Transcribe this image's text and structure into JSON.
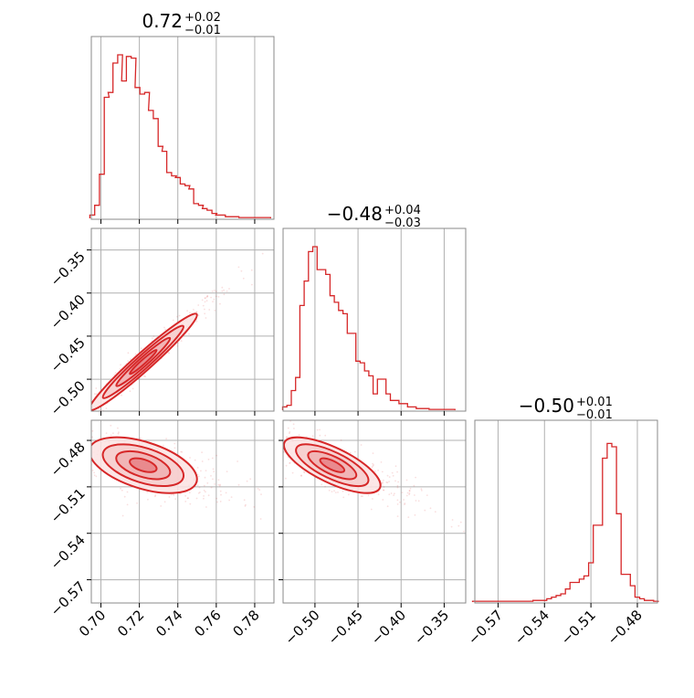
{
  "colors": {
    "accent": "#d62728",
    "fill_light": "#f4c6c7",
    "grid": "#b0b0b0"
  },
  "chart_data": {
    "type": "corner",
    "parameters": [
      {
        "title_main": "0.72",
        "title_plus": "+0.02",
        "title_minus": "−0.01",
        "range": [
          0.695,
          0.79
        ],
        "ticks": [
          0.7,
          0.72,
          0.74,
          0.76,
          0.78
        ],
        "tick_labels": [
          "0.70",
          "0.72",
          "0.74",
          "0.76",
          "0.78"
        ]
      },
      {
        "title_main": "−0.48",
        "title_plus": "+0.04",
        "title_minus": "−0.03",
        "range": [
          -0.537,
          -0.325
        ],
        "ticks": [
          -0.5,
          -0.45,
          -0.4,
          -0.35
        ],
        "tick_labels": [
          "−0.50",
          "−0.45",
          "−0.40",
          "−0.35"
        ]
      },
      {
        "title_main": "−0.50",
        "title_plus": "+0.01",
        "title_minus": "−0.01",
        "range": [
          -0.585,
          -0.467
        ],
        "ticks": [
          -0.57,
          -0.54,
          -0.51,
          -0.48
        ],
        "tick_labels": [
          "−0.57",
          "−0.54",
          "−0.51",
          "−0.48"
        ]
      }
    ],
    "histograms": [
      {
        "param": 0,
        "x": [
          0.6955,
          0.698,
          0.7005,
          0.703,
          0.705,
          0.7075,
          0.71,
          0.712,
          0.7145,
          0.717,
          0.719,
          0.7215,
          0.724,
          0.726,
          0.7285,
          0.731,
          0.733,
          0.7355,
          0.738,
          0.74,
          0.7425,
          0.745,
          0.747,
          0.7495,
          0.752,
          0.754,
          0.7565,
          0.759,
          0.761,
          0.7635,
          0.766,
          0.768,
          0.7705,
          0.773,
          0.775,
          0.7775,
          0.78,
          0.782,
          0.7845,
          0.787
        ],
        "y": [
          0.02,
          0.08,
          0.27,
          0.74,
          0.77,
          0.95,
          1.0,
          0.84,
          0.99,
          0.98,
          0.8,
          0.76,
          0.77,
          0.66,
          0.61,
          0.44,
          0.41,
          0.28,
          0.26,
          0.25,
          0.21,
          0.2,
          0.18,
          0.09,
          0.08,
          0.06,
          0.05,
          0.03,
          0.02,
          0.02,
          0.01,
          0.01,
          0.01,
          0.005,
          0.005,
          0.005,
          0.005,
          0.005,
          0.005,
          0.005
        ]
      },
      {
        "param": 1,
        "x": [
          -0.535,
          -0.53,
          -0.525,
          -0.52,
          -0.515,
          -0.51,
          -0.505,
          -0.5,
          -0.495,
          -0.49,
          -0.485,
          -0.48,
          -0.475,
          -0.47,
          -0.465,
          -0.46,
          -0.455,
          -0.45,
          -0.445,
          -0.44,
          -0.435,
          -0.43,
          -0.425,
          -0.42,
          -0.415,
          -0.41,
          -0.405,
          -0.4,
          -0.395,
          -0.39,
          -0.385,
          -0.38,
          -0.375,
          -0.37,
          -0.365,
          -0.36,
          -0.355,
          -0.35,
          -0.345,
          -0.34
        ],
        "y": [
          0.02,
          0.03,
          0.12,
          0.2,
          0.64,
          0.79,
          0.97,
          1.0,
          0.86,
          0.86,
          0.83,
          0.7,
          0.66,
          0.61,
          0.59,
          0.47,
          0.47,
          0.3,
          0.29,
          0.24,
          0.21,
          0.1,
          0.19,
          0.19,
          0.1,
          0.06,
          0.06,
          0.04,
          0.04,
          0.02,
          0.02,
          0.01,
          0.01,
          0.01,
          0.005,
          0.005,
          0.005,
          0.005,
          0.005,
          0.005
        ]
      },
      {
        "param": 2,
        "x": [
          -0.585,
          -0.582,
          -0.579,
          -0.576,
          -0.573,
          -0.57,
          -0.567,
          -0.564,
          -0.561,
          -0.558,
          -0.555,
          -0.552,
          -0.549,
          -0.546,
          -0.543,
          -0.54,
          -0.537,
          -0.534,
          -0.531,
          -0.528,
          -0.525,
          -0.522,
          -0.519,
          -0.516,
          -0.513,
          -0.51,
          -0.507,
          -0.504,
          -0.501,
          -0.498,
          -0.495,
          -0.492,
          -0.489,
          -0.486,
          -0.483,
          -0.48,
          -0.477,
          -0.474,
          -0.471,
          -0.468
        ],
        "y": [
          0.005,
          0.005,
          0.005,
          0.005,
          0.005,
          0.005,
          0.005,
          0.005,
          0.005,
          0.005,
          0.005,
          0.005,
          0.005,
          0.01,
          0.01,
          0.01,
          0.02,
          0.03,
          0.04,
          0.05,
          0.08,
          0.12,
          0.12,
          0.14,
          0.16,
          0.24,
          0.47,
          0.47,
          0.88,
          0.97,
          0.95,
          0.54,
          0.17,
          0.17,
          0.1,
          0.03,
          0.02,
          0.01,
          0.01,
          0.005
        ]
      }
    ],
    "joint": [
      {
        "row": 1,
        "col": 0,
        "center": [
          0.722,
          -0.48
        ],
        "sd": [
          0.014,
          0.028
        ],
        "rho": 0.97
      },
      {
        "row": 2,
        "col": 0,
        "center": [
          0.722,
          -0.496
        ],
        "sd": [
          0.014,
          0.009
        ],
        "rho": -0.5
      },
      {
        "row": 2,
        "col": 1,
        "center": [
          -0.48,
          -0.496
        ],
        "sd": [
          0.028,
          0.009
        ],
        "rho": -0.72
      }
    ],
    "contour_levels_sigma": [
      0.5,
      1.0,
      1.5,
      2.0
    ],
    "grid": true
  }
}
